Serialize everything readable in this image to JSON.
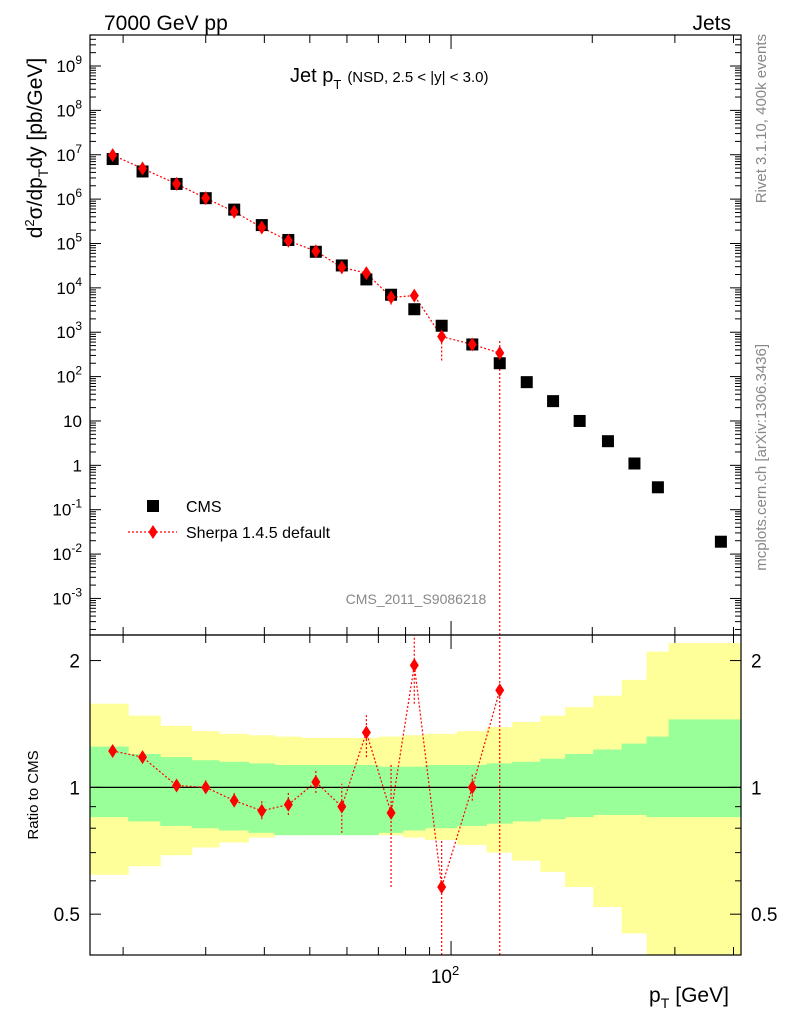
{
  "header": {
    "energy": "7000 GeV pp",
    "category": "Jets",
    "rivet_version": "Rivet 3.1.10,  400k events",
    "source": "mcplots.cern.ch [arXiv:1306.3436]",
    "analysis_id": "CMS_2011_S9086218"
  },
  "chart_data": [
    {
      "type": "scatter",
      "title_main": "Jet p",
      "title_sub": "T",
      "title_note": "(NSD, 2.5 < |y| < 3.0)",
      "ylabel": "d²σ/dp_T dy [pb/GeV]",
      "xlabel": "p_T [GeV]",
      "xscale": "log",
      "yscale": "log",
      "xlim": [
        17,
        415
      ],
      "ylim": [
        0.00015,
        5000000000.0
      ],
      "ytick_labels": [
        "10^-3",
        "10^-2",
        "10^-1",
        "1",
        "10",
        "10^2",
        "10^3",
        "10^4",
        "10^5",
        "10^6",
        "10^7",
        "10^8",
        "10^9"
      ],
      "legend_position": "bottom-left",
      "series": [
        {
          "name": "CMS",
          "marker": "square",
          "color": "#000000",
          "x": [
            19,
            22,
            26,
            30,
            34.5,
            39.5,
            45,
            51.5,
            58.5,
            66,
            74.5,
            83.5,
            95.5,
            111,
            127,
            145,
            165,
            188,
            216,
            246,
            276,
            376
          ],
          "y": [
            8000000.0,
            4200000.0,
            2200000.0,
            1050000.0,
            580000.0,
            260000.0,
            120000.0,
            65000.0,
            32000.0,
            15500.0,
            7000.0,
            3300.0,
            1400.0,
            530,
            200,
            75,
            28,
            10,
            3.5,
            1.1,
            0.32,
            0.019
          ]
        },
        {
          "name": "Sherpa 1.4.5 default",
          "marker": "diamond",
          "line": "dotted",
          "color": "#ff0000",
          "x": [
            19,
            22,
            26,
            30,
            34.5,
            39.5,
            45,
            51.5,
            58.5,
            66,
            74.5,
            83.5,
            95.5,
            111,
            127
          ],
          "y": [
            9800000.0,
            4900000.0,
            2200000.0,
            1050000.0,
            520000.0,
            230000.0,
            115000.0,
            67000.0,
            29000.0,
            21500.0,
            6100.0,
            6700.0,
            800,
            530,
            340
          ],
          "yerr_low": [
            9300000.0,
            4700000.0,
            2100000.0,
            1000000.0,
            490000.0,
            215000.0,
            108000.0,
            62000.0,
            26000.0,
            18000.0,
            4200.0,
            5300.0,
            230,
            480,
            0.0001
          ],
          "yerr_high": [
            10300000.0,
            5100000.0,
            2300000.0,
            1100000.0,
            550000.0,
            245000.0,
            122000.0,
            72000.0,
            32000.0,
            25000.0,
            8000.0,
            8100.0,
            1370,
            580,
            700
          ]
        }
      ]
    },
    {
      "type": "scatter",
      "ylabel": "Ratio to CMS",
      "xlabel": "p_T [GeV]",
      "xscale": "log",
      "yscale": "log",
      "xlim": [
        17,
        415
      ],
      "ylim": [
        0.4,
        2.3
      ],
      "ytick_labels": [
        "0.5",
        "1",
        "2"
      ],
      "xtick_label": "10^2",
      "reference_line": 1,
      "bands": {
        "edges": [
          17,
          20.5,
          24,
          28,
          32,
          37,
          42,
          48,
          55,
          62,
          70,
          79,
          88,
          103,
          119,
          135,
          155,
          175,
          201,
          231,
          261,
          291,
          415
        ],
        "inner_color": "#99ff99",
        "outer_color": "#ffff99",
        "inner_low": [
          0.85,
          0.83,
          0.81,
          0.8,
          0.79,
          0.78,
          0.77,
          0.77,
          0.77,
          0.77,
          0.78,
          0.79,
          0.8,
          0.81,
          0.82,
          0.83,
          0.84,
          0.85,
          0.86,
          0.86,
          0.85,
          0.85
        ],
        "inner_high": [
          1.25,
          1.2,
          1.18,
          1.16,
          1.15,
          1.14,
          1.13,
          1.13,
          1.13,
          1.13,
          1.12,
          1.12,
          1.13,
          1.13,
          1.14,
          1.15,
          1.17,
          1.2,
          1.23,
          1.27,
          1.32,
          1.45
        ],
        "outer_low": [
          0.62,
          0.65,
          0.69,
          0.72,
          0.74,
          0.76,
          0.77,
          0.78,
          0.78,
          0.78,
          0.77,
          0.76,
          0.75,
          0.73,
          0.7,
          0.67,
          0.63,
          0.58,
          0.52,
          0.45,
          0.38,
          0.38
        ],
        "outer_high": [
          1.58,
          1.48,
          1.4,
          1.36,
          1.34,
          1.33,
          1.32,
          1.31,
          1.31,
          1.31,
          1.32,
          1.33,
          1.34,
          1.36,
          1.39,
          1.43,
          1.48,
          1.55,
          1.65,
          1.8,
          2.1,
          2.2
        ]
      },
      "series": [
        {
          "name": "Sherpa 1.4.5 default",
          "marker": "diamond",
          "line": "dotted",
          "color": "#ff0000",
          "x": [
            19,
            22,
            26,
            30,
            34.5,
            39.5,
            45,
            51.5,
            58.5,
            66,
            74.5,
            83.5,
            95.5,
            111,
            127
          ],
          "y": [
            1.22,
            1.18,
            1.01,
            1.0,
            0.93,
            0.88,
            0.91,
            1.03,
            0.9,
            1.35,
            0.87,
            1.95,
            0.58,
            1.0,
            1.7
          ],
          "yerr_low": [
            1.18,
            1.15,
            0.98,
            0.97,
            0.9,
            0.84,
            0.86,
            0.97,
            0.78,
            1.18,
            0.58,
            1.58,
            0.4,
            0.93,
            0.4
          ],
          "yerr_high": [
            1.26,
            1.22,
            1.04,
            1.04,
            0.97,
            0.93,
            0.97,
            1.1,
            1.02,
            1.5,
            1.14,
            2.3,
            0.75,
            1.08,
            2.3
          ]
        }
      ]
    }
  ]
}
